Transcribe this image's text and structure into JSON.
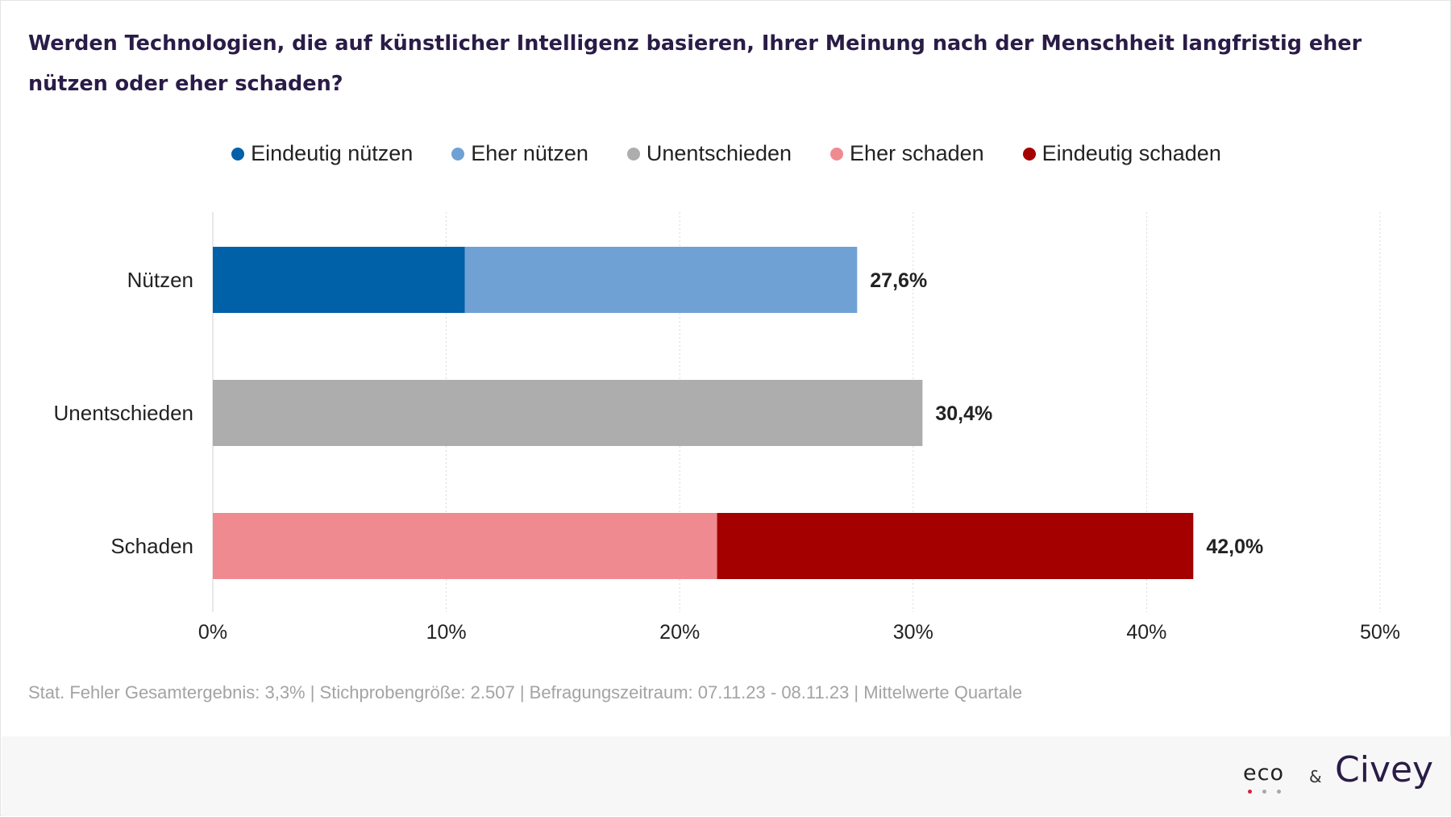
{
  "title": "Werden Technologien, die auf künstlicher Intelligenz basieren, Ihrer Meinung nach der Menschheit langfristig eher nützen oder eher schaden?",
  "legend": [
    {
      "label": "Eindeutig nützen",
      "color": "#0060a8"
    },
    {
      "label": "Eher nützen",
      "color": "#6fa1d5"
    },
    {
      "label": "Unentschieden",
      "color": "#adadad"
    },
    {
      "label": "Eher schaden",
      "color": "#f08a91"
    },
    {
      "label": "Eindeutig schaden",
      "color": "#a50000"
    }
  ],
  "chart_data": {
    "type": "bar",
    "orientation": "horizontal",
    "stacked": true,
    "categories": [
      "Nützen",
      "Unentschieden",
      "Schaden"
    ],
    "series": [
      {
        "name": "Eindeutig nützen",
        "color": "#0060a8",
        "values": [
          10.8,
          0,
          0
        ]
      },
      {
        "name": "Eher nützen",
        "color": "#6fa1d5",
        "values": [
          16.8,
          0,
          0
        ]
      },
      {
        "name": "Unentschieden",
        "color": "#adadad",
        "values": [
          0,
          30.4,
          0
        ]
      },
      {
        "name": "Eher schaden",
        "color": "#f08a91",
        "values": [
          0,
          0,
          21.6
        ]
      },
      {
        "name": "Eindeutig schaden",
        "color": "#a50000",
        "values": [
          0,
          0,
          20.4
        ]
      }
    ],
    "totals": [
      27.6,
      30.4,
      42.0
    ],
    "total_labels": [
      "27,6%",
      "30,4%",
      "42,0%"
    ],
    "xlim": [
      0,
      50
    ],
    "x_ticks": [
      0,
      10,
      20,
      30,
      40,
      50
    ],
    "x_tick_labels": [
      "0%",
      "10%",
      "20%",
      "30%",
      "40%",
      "50%"
    ],
    "grid": "vertical dotted",
    "legend_position": "top-center"
  },
  "footnote": "Stat. Fehler Gesamtergebnis: 3,3% | Stichprobengröße: 2.507 | Befragungszeitraum: 07.11.23 - 08.11.23 | Mittelwerte Quartale",
  "logos": {
    "eco": "eco",
    "eco_dot_colors": [
      "#d6233a",
      "#a8a8a8",
      "#a8a8a8"
    ],
    "ampersand": "&",
    "civey": "Civey"
  }
}
